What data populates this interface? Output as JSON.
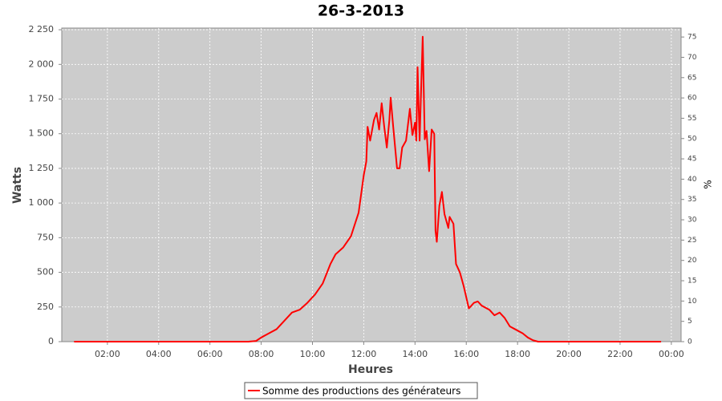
{
  "chart_data": {
    "type": "line",
    "title": "26-3-2013",
    "x_label": "Heures",
    "y_label": "Watts",
    "y2_label": "%",
    "x": [
      0.7,
      7.5,
      7.8,
      8.0,
      8.3,
      8.6,
      8.9,
      9.2,
      9.5,
      9.8,
      10.1,
      10.4,
      10.7,
      10.9,
      11.2,
      11.5,
      11.8,
      12.0,
      12.1,
      12.15,
      12.25,
      12.4,
      12.5,
      12.6,
      12.7,
      12.8,
      12.9,
      13.0,
      13.05,
      13.15,
      13.3,
      13.4,
      13.5,
      13.65,
      13.8,
      13.9,
      14.0,
      14.05,
      14.1,
      14.18,
      14.3,
      14.38,
      14.45,
      14.55,
      14.65,
      14.75,
      14.8,
      14.85,
      14.95,
      15.05,
      15.15,
      15.3,
      15.35,
      15.5,
      15.6,
      15.75,
      15.9,
      16.1,
      16.3,
      16.45,
      16.6,
      16.9,
      17.1,
      17.3,
      17.5,
      17.7,
      17.9,
      18.2,
      18.4,
      18.6,
      18.8,
      23.6
    ],
    "series": [
      {
        "name": "Somme des productions des  générateurs",
        "color": "#ff0000",
        "values": [
          0,
          0,
          5,
          30,
          60,
          90,
          150,
          210,
          230,
          280,
          340,
          420,
          560,
          630,
          680,
          760,
          930,
          1200,
          1300,
          1550,
          1450,
          1600,
          1650,
          1530,
          1720,
          1550,
          1400,
          1600,
          1760,
          1550,
          1250,
          1250,
          1400,
          1450,
          1680,
          1490,
          1580,
          1450,
          1980,
          1450,
          2200,
          1460,
          1520,
          1230,
          1530,
          1500,
          800,
          720,
          980,
          1080,
          920,
          820,
          900,
          850,
          560,
          500,
          400,
          240,
          280,
          290,
          260,
          230,
          190,
          210,
          170,
          110,
          90,
          60,
          30,
          10,
          0,
          0
        ]
      }
    ],
    "xlim": [
      0.22,
      24.38
    ],
    "xticks": [
      {
        "value": 2,
        "label": "02:00"
      },
      {
        "value": 4,
        "label": "04:00"
      },
      {
        "value": 6,
        "label": "06:00"
      },
      {
        "value": 8,
        "label": "08:00"
      },
      {
        "value": 10,
        "label": "10:00"
      },
      {
        "value": 12,
        "label": "12:00"
      },
      {
        "value": 14,
        "label": "14:00"
      },
      {
        "value": 16,
        "label": "16:00"
      },
      {
        "value": 18,
        "label": "18:00"
      },
      {
        "value": 20,
        "label": "20:00"
      },
      {
        "value": 22,
        "label": "22:00"
      },
      {
        "value": 24,
        "label": "00:00"
      }
    ],
    "ylim": [
      0,
      2262
    ],
    "yticks": [
      0,
      250,
      500,
      750,
      {
        "value": 1000,
        "label": "1 000"
      },
      {
        "value": 1250,
        "label": "1 250"
      },
      {
        "value": 1500,
        "label": "1 500"
      },
      {
        "value": 1750,
        "label": "1 750"
      },
      {
        "value": 2000,
        "label": "2 000"
      },
      {
        "value": 2250,
        "label": "2 250"
      }
    ],
    "y2lim": [
      0,
      77.2
    ],
    "y2ticks": [
      0,
      5,
      10,
      15,
      20,
      25,
      30,
      35,
      40,
      45,
      50,
      55,
      60,
      65,
      70,
      75
    ],
    "grid": true
  }
}
